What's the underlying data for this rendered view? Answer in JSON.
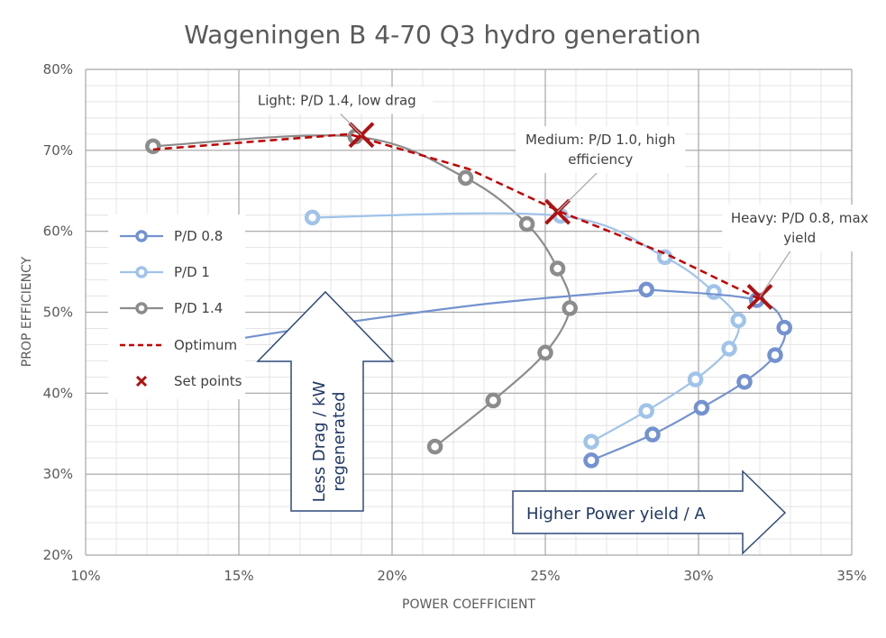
{
  "chart_data": {
    "type": "scatter",
    "title": "Wageningen B 4-70 Q3 hydro generation",
    "xlabel": "POWER COEFFICIENT",
    "ylabel": "PROP EFFICIENCY",
    "xlim": [
      0.1,
      0.35
    ],
    "ylim": [
      0.2,
      0.8
    ],
    "x_ticks": [
      0.1,
      0.15,
      0.2,
      0.25,
      0.3,
      0.35
    ],
    "x_tick_labels": [
      "10%",
      "15%",
      "20%",
      "25%",
      "30%",
      "35%"
    ],
    "y_ticks": [
      0.2,
      0.3,
      0.4,
      0.5,
      0.6,
      0.7,
      0.8
    ],
    "y_tick_labels": [
      "20%",
      "30%",
      "40%",
      "50%",
      "60%",
      "70%",
      "80%"
    ],
    "grid": true,
    "minor_grid": true,
    "legend_position": "left",
    "legend": [
      "P/D 0.8",
      "P/D 1",
      "P/D 1.4",
      "Optimum",
      "Set points"
    ],
    "series": [
      {
        "name": "P/D 0.8",
        "style": "smooth-line-with-ring-markers",
        "color": "#7392d0",
        "points": [
          [
            0.265,
            0.317
          ],
          [
            0.285,
            0.349
          ],
          [
            0.301,
            0.382
          ],
          [
            0.315,
            0.414
          ],
          [
            0.325,
            0.447
          ],
          [
            0.328,
            0.481
          ],
          [
            0.319,
            0.515
          ],
          [
            0.283,
            0.528
          ]
        ],
        "tail_points": [
          [
            0.283,
            0.528
          ],
          [
            0.23,
            0.51
          ],
          [
            0.175,
            0.482
          ],
          [
            0.13,
            0.455
          ]
        ]
      },
      {
        "name": "P/D 1",
        "style": "smooth-line-with-ring-markers",
        "color": "#a0c3ea",
        "points": [
          [
            0.265,
            0.34
          ],
          [
            0.283,
            0.378
          ],
          [
            0.299,
            0.417
          ],
          [
            0.31,
            0.455
          ],
          [
            0.313,
            0.49
          ],
          [
            0.305,
            0.525
          ],
          [
            0.289,
            0.568
          ],
          [
            0.255,
            0.619
          ],
          [
            0.174,
            0.617
          ]
        ]
      },
      {
        "name": "P/D 1.4",
        "style": "smooth-line-with-ring-markers",
        "color": "#8c8c8c",
        "points": [
          [
            0.214,
            0.334
          ],
          [
            0.233,
            0.391
          ],
          [
            0.25,
            0.45
          ],
          [
            0.258,
            0.505
          ],
          [
            0.254,
            0.554
          ],
          [
            0.244,
            0.609
          ],
          [
            0.224,
            0.666
          ],
          [
            0.188,
            0.717
          ],
          [
            0.122,
            0.705
          ]
        ]
      },
      {
        "name": "Optimum",
        "style": "dashed-line",
        "color": "#c00000",
        "points": [
          [
            0.122,
            0.701
          ],
          [
            0.186,
            0.72
          ],
          [
            0.225,
            0.677
          ],
          [
            0.255,
            0.624
          ],
          [
            0.29,
            0.571
          ],
          [
            0.319,
            0.518
          ]
        ]
      },
      {
        "name": "Set points",
        "style": "x-markers",
        "color": "#c00000",
        "points": [
          [
            0.19,
            0.719
          ],
          [
            0.254,
            0.624
          ],
          [
            0.32,
            0.519
          ]
        ]
      }
    ],
    "annotations": [
      {
        "text_lines": [
          "Light: P/D 1.4, low drag"
        ],
        "target": [
          0.19,
          0.719
        ],
        "anchor": [
          0.182,
          0.745
        ]
      },
      {
        "text_lines": [
          "Medium: P/D 1.0, high",
          "efficiency"
        ],
        "target": [
          0.254,
          0.624
        ],
        "anchor": [
          0.268,
          0.672
        ]
      },
      {
        "text_lines": [
          "Heavy: P/D 0.8, max",
          "yield"
        ],
        "target": [
          0.32,
          0.519
        ],
        "anchor": [
          0.333,
          0.575
        ]
      }
    ],
    "callouts": [
      {
        "type": "up-arrow",
        "text_lines": [
          "Less Drag / kW",
          "regenerated"
        ],
        "color": "#2f4a7a"
      },
      {
        "type": "right-arrow",
        "text": "Higher Power yield / A",
        "color": "#2f4a7a"
      }
    ]
  }
}
